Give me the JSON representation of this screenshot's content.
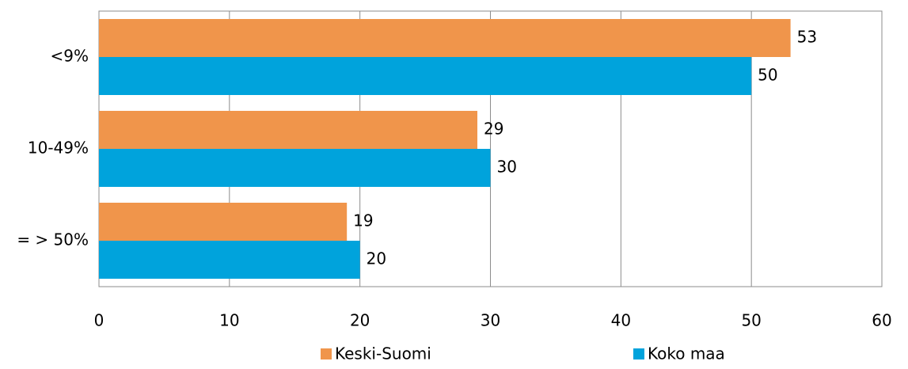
{
  "chart_data": {
    "type": "hbar",
    "categories": [
      "<9%",
      "10-49%",
      "= > 50%"
    ],
    "series": [
      {
        "name": "Keski-Suomi",
        "color": "#f0954b",
        "values": [
          53,
          29,
          19
        ]
      },
      {
        "name": "Koko maa",
        "color": "#00a3dc",
        "values": [
          50,
          30,
          20
        ]
      }
    ],
    "xlim": [
      0,
      60
    ],
    "xticks": [
      0,
      10,
      20,
      30,
      40,
      50,
      60
    ],
    "grid": true,
    "legend": "bottom"
  }
}
